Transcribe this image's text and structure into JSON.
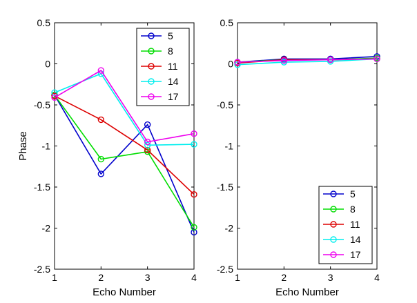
{
  "chart_data": [
    {
      "type": "line",
      "xlabel": "Echo Number",
      "ylabel": "Phase",
      "xlim": [
        1,
        4
      ],
      "ylim": [
        -2.5,
        0.5
      ],
      "xticks": [
        "1",
        "2",
        "3",
        "4"
      ],
      "yticks": [
        "0.5",
        "0",
        "-0.5",
        "-1",
        "-1.5",
        "-2",
        "-2.5"
      ],
      "grid": false,
      "legend_position": "top-right",
      "x": [
        1,
        2,
        3,
        4
      ],
      "series": [
        {
          "name": "5",
          "color": "#0000cc",
          "values": [
            -0.38,
            -1.34,
            -0.74,
            -2.05
          ]
        },
        {
          "name": "8",
          "color": "#00dd00",
          "values": [
            -0.38,
            -1.16,
            -1.07,
            -1.99
          ]
        },
        {
          "name": "11",
          "color": "#dd0000",
          "values": [
            -0.39,
            -0.68,
            -1.05,
            -1.59
          ]
        },
        {
          "name": "14",
          "color": "#00eeee",
          "values": [
            -0.35,
            -0.12,
            -0.99,
            -0.98
          ]
        },
        {
          "name": "17",
          "color": "#ee00ee",
          "values": [
            -0.41,
            -0.08,
            -0.95,
            -0.85
          ]
        }
      ]
    },
    {
      "type": "line",
      "xlabel": "Echo Number",
      "ylabel": "",
      "xlim": [
        1,
        4
      ],
      "ylim": [
        -2.5,
        0.5
      ],
      "xticks": [
        "1",
        "2",
        "3",
        "4"
      ],
      "yticks": [
        "0.5",
        "0",
        "-0.5",
        "-1",
        "-1.5",
        "-2",
        "-2.5"
      ],
      "grid": false,
      "legend_position": "bottom-right",
      "x": [
        1,
        2,
        3,
        4
      ],
      "series": [
        {
          "name": "5",
          "color": "#0000cc",
          "values": [
            0.02,
            0.06,
            0.06,
            0.09
          ]
        },
        {
          "name": "8",
          "color": "#00dd00",
          "values": [
            0.02,
            0.05,
            0.05,
            0.07
          ]
        },
        {
          "name": "11",
          "color": "#dd0000",
          "values": [
            0.01,
            0.05,
            0.05,
            0.06
          ]
        },
        {
          "name": "14",
          "color": "#00eeee",
          "values": [
            -0.01,
            0.02,
            0.03,
            0.06
          ]
        },
        {
          "name": "17",
          "color": "#ee00ee",
          "values": [
            0.02,
            0.04,
            0.05,
            0.06
          ]
        }
      ]
    }
  ]
}
